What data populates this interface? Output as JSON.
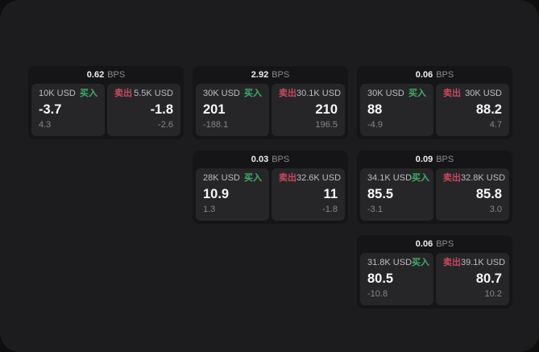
{
  "meta": {
    "unit_label": "BPS"
  },
  "labels": {
    "buy": "买入",
    "sell": "卖出"
  },
  "colors": {
    "outer_background": "#0e0e0e",
    "window_background": "#1c1c1e",
    "card_background": "#151517",
    "panel_background": "#262629",
    "buy_green": "#3fae6b",
    "sell_red": "#c9485e",
    "value_white": "#f7f7f8",
    "muted_gray": "#86868b"
  },
  "cards": [
    {
      "bps": "0.62",
      "buy": {
        "amount": "10K USD",
        "price": "-3.7",
        "delta": "4.3"
      },
      "sell": {
        "amount": "5.5K USD",
        "price": "-1.8",
        "delta": "-2.6"
      }
    },
    {
      "bps": "2.92",
      "buy": {
        "amount": "30K USD",
        "price": "201",
        "delta": "-188.1"
      },
      "sell": {
        "amount": "30.1K USD",
        "price": "210",
        "delta": "196.5"
      }
    },
    {
      "bps": "0.06",
      "buy": {
        "amount": "30K USD",
        "price": "88",
        "delta": "-4.9"
      },
      "sell": {
        "amount": "30K USD",
        "price": "88.2",
        "delta": "4.7"
      }
    },
    {
      "bps": "0.03",
      "buy": {
        "amount": "28K USD",
        "price": "10.9",
        "delta": "1.3"
      },
      "sell": {
        "amount": "32.6K USD",
        "price": "11",
        "delta": "-1.8"
      }
    },
    {
      "bps": "0.09",
      "buy": {
        "amount": "34.1K USD",
        "price": "85.5",
        "delta": "-3.1"
      },
      "sell": {
        "amount": "32.8K USD",
        "price": "85.8",
        "delta": "3.0"
      }
    },
    {
      "bps": "0.06",
      "buy": {
        "amount": "31.8K USD",
        "price": "80.5",
        "delta": "-10.8"
      },
      "sell": {
        "amount": "39.1K USD",
        "price": "80.7",
        "delta": "10.2"
      }
    }
  ]
}
